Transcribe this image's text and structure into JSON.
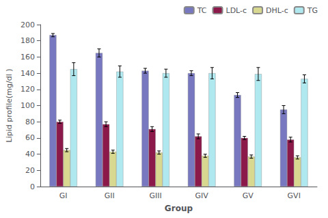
{
  "chart_data": {
    "type": "bar",
    "xlabel": "Group",
    "ylabel": "Lipid profile(mg/dl )",
    "categories": [
      "GI",
      "GII",
      "GIII",
      "GIV",
      "GV",
      "GVI"
    ],
    "series": [
      {
        "name": "TC",
        "color": "#7878c0",
        "values": [
          187,
          165,
          143,
          140,
          113,
          95
        ],
        "errors": [
          2,
          5,
          3,
          3,
          3,
          5
        ]
      },
      {
        "name": "LDL-c",
        "color": "#8b1a4a",
        "values": [
          80,
          77,
          71,
          62,
          60,
          58
        ],
        "errors": [
          2,
          3,
          3,
          3,
          2,
          3
        ]
      },
      {
        "name": "DHL-c",
        "color": "#d8d890",
        "values": [
          45,
          43,
          42,
          38,
          37,
          36
        ],
        "errors": [
          2,
          2,
          2,
          2,
          2,
          2
        ]
      },
      {
        "name": "TG",
        "color": "#b0e8f0",
        "values": [
          145,
          142,
          140,
          140,
          139,
          133
        ],
        "errors": [
          8,
          7,
          5,
          7,
          8,
          5
        ]
      }
    ],
    "ylim": [
      0,
      200
    ],
    "yticks": [
      0,
      20,
      40,
      60,
      80,
      100,
      120,
      140,
      160,
      180,
      200
    ],
    "grid": false,
    "legend": "upper right"
  }
}
